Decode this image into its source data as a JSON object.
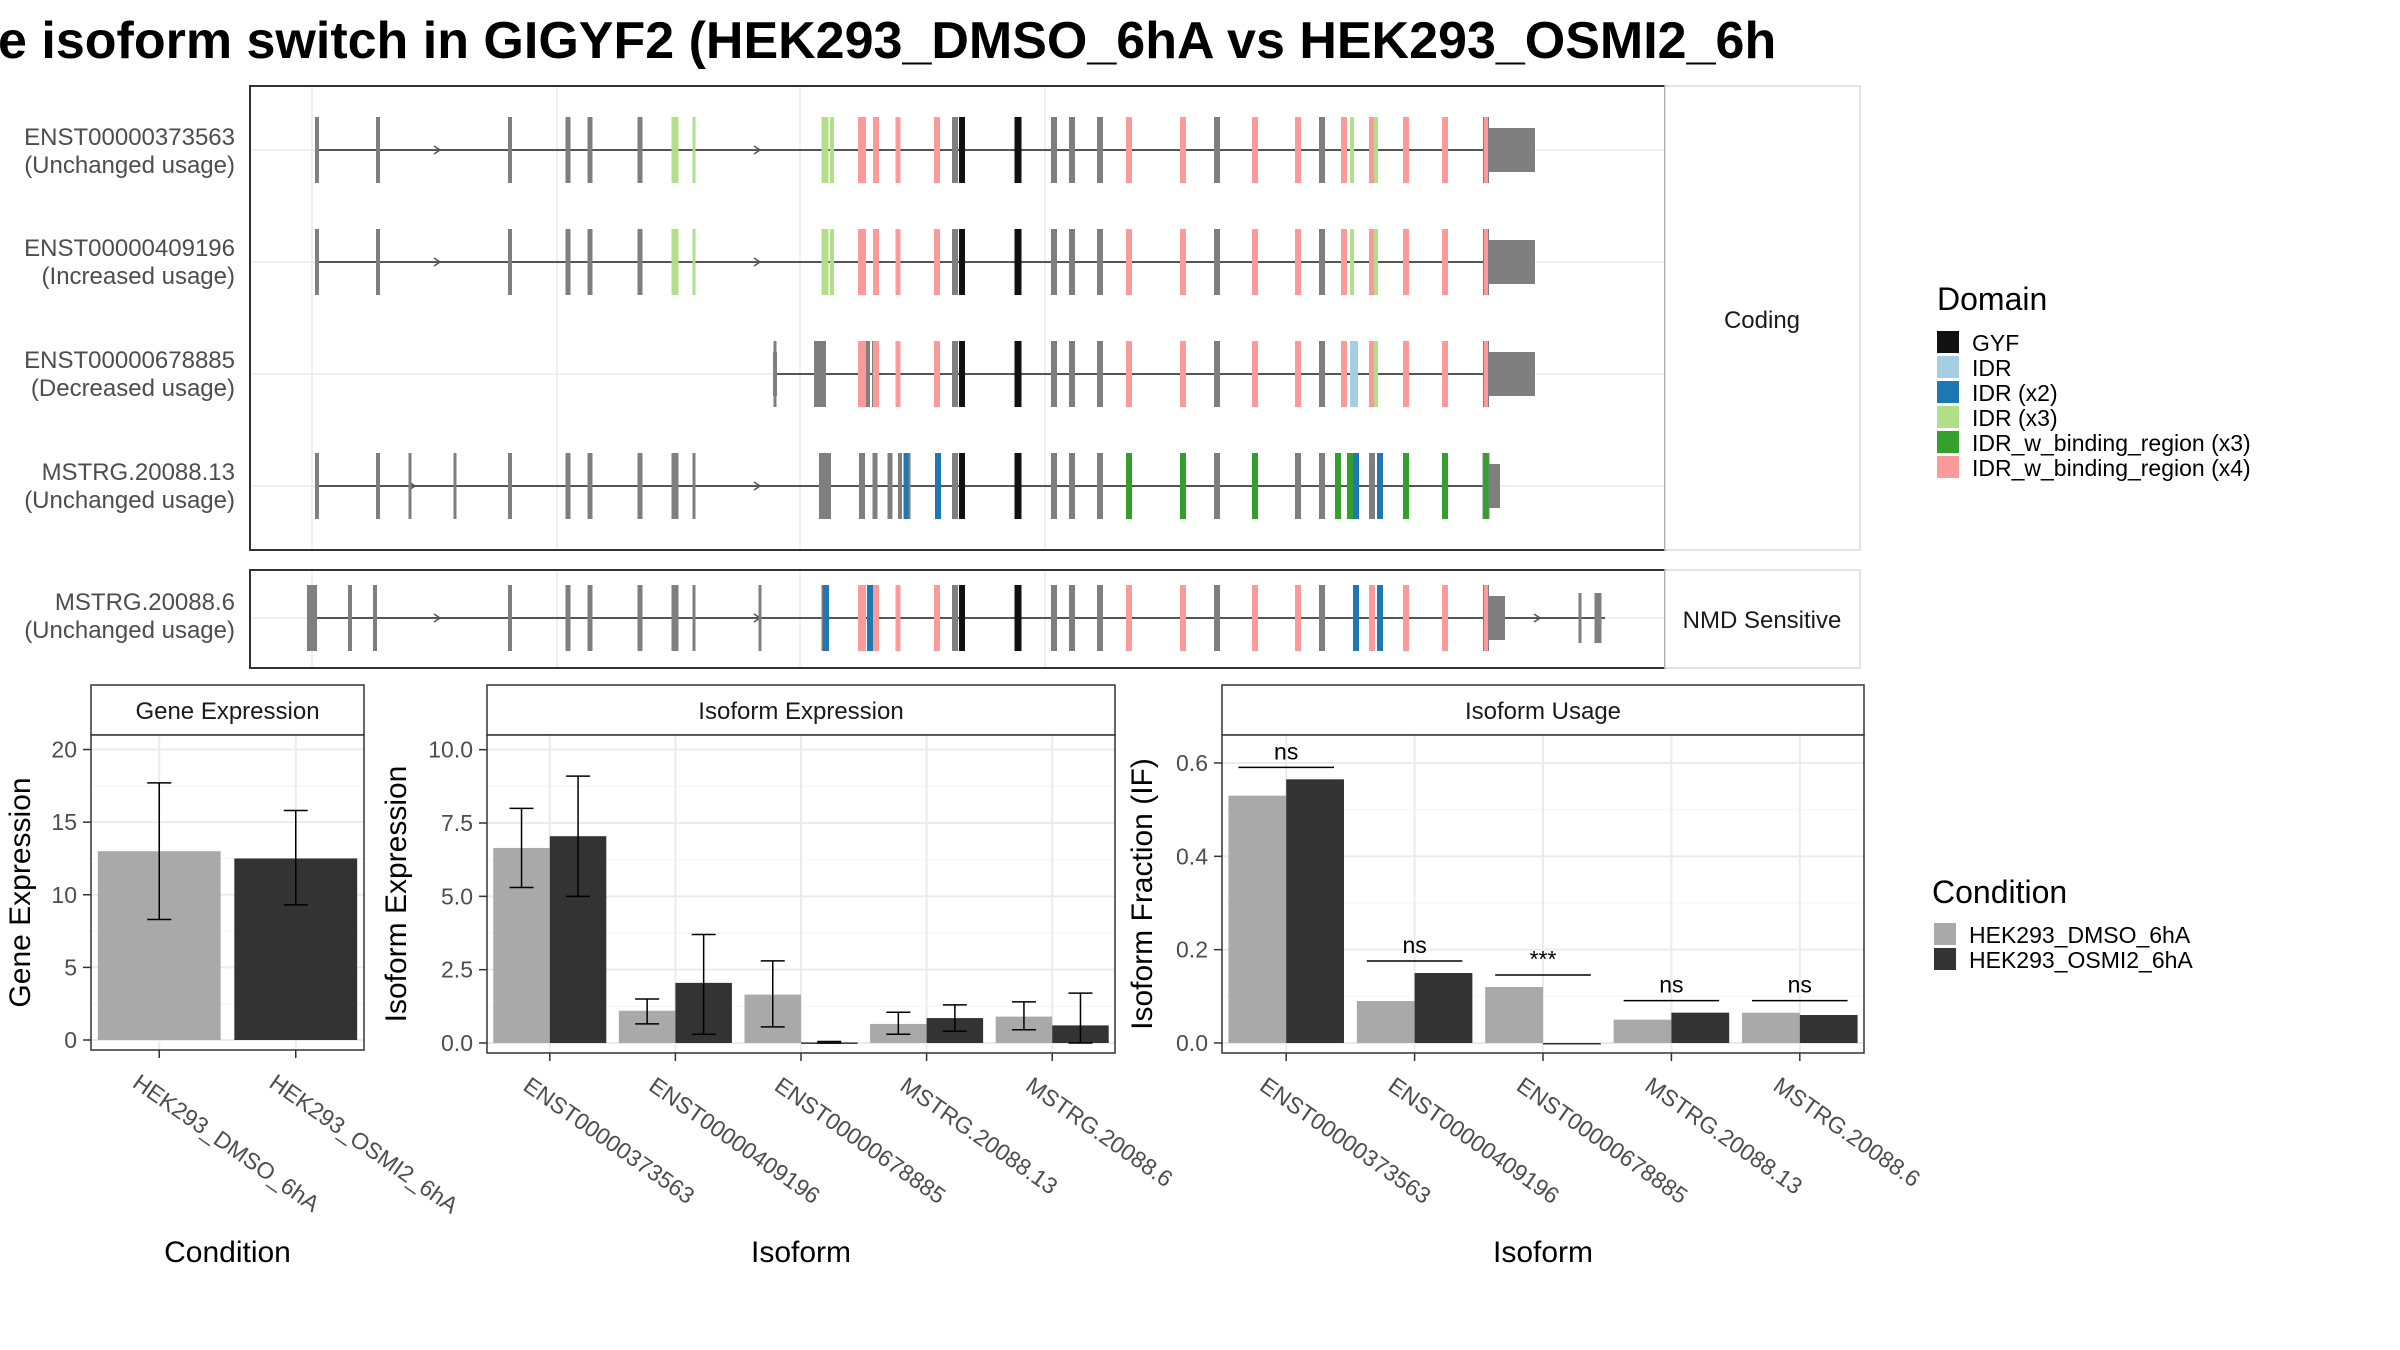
{
  "title": "e isoform switch in GIGYF2 (HEK293_DMSO_6hA vs HEK293_OSMI2_6h",
  "colors": {
    "exon": "#7f7f7f",
    "GYF": "#111111",
    "IDR": "#a6cee3",
    "IDR (x2)": "#1f78b4",
    "IDR (x3)": "#b2df8a",
    "IDR_w_binding_region (x3)": "#33a02c",
    "IDR_w_binding_region (x4)": "#fb9a99",
    "HEK293_DMSO_6hA": "#a9a9a9",
    "HEK293_OSMI2_6hA": "#333333"
  },
  "transcripts": {
    "coding_panel_label": "Coding",
    "nmd_panel_label": "NMD Sensitive",
    "rows": [
      {
        "id": "ENST00000373563",
        "usage": "(Unchanged usage)",
        "panel": "Coding"
      },
      {
        "id": "ENST00000409196",
        "usage": "(Increased usage)",
        "panel": "Coding"
      },
      {
        "id": "ENST00000678885",
        "usage": "(Decreased usage)",
        "panel": "Coding"
      },
      {
        "id": "MSTRG.20088.13",
        "usage": "(Unchanged usage)",
        "panel": "Coding"
      },
      {
        "id": "MSTRG.20088.6",
        "usage": "(Unchanged usage)",
        "panel": "NMD Sensitive"
      }
    ]
  },
  "domain_legend": {
    "title": "Domain",
    "items": [
      "GYF",
      "IDR",
      "IDR (x2)",
      "IDR (x3)",
      "IDR_w_binding_region (x3)",
      "IDR_w_binding_region (x4)"
    ]
  },
  "condition_legend": {
    "title": "Condition",
    "items": [
      "HEK293_DMSO_6hA",
      "HEK293_OSMI2_6hA"
    ]
  },
  "chart_data": [
    {
      "type": "bar",
      "title": "Gene Expression",
      "xlabel": "Condition",
      "ylabel": "Gene Expression",
      "ylim": [
        0,
        21
      ],
      "yticks": [
        0,
        5,
        10,
        15,
        20
      ],
      "categories": [
        "HEK293_DMSO_6hA",
        "HEK293_OSMI2_6hA"
      ],
      "values": [
        13.0,
        12.5
      ],
      "error_low": [
        8.3,
        9.3
      ],
      "error_high": [
        17.7,
        15.8
      ]
    },
    {
      "type": "bar",
      "title": "Isoform Expression",
      "xlabel": "Isoform",
      "ylabel": "Isoform Expression",
      "ylim": [
        0,
        10.5
      ],
      "yticks": [
        0.0,
        2.5,
        5.0,
        7.5,
        10.0
      ],
      "ytick_labels": [
        "0.0",
        "2.5",
        "5.0",
        "7.5",
        "10.0"
      ],
      "categories": [
        "ENST00000373563",
        "ENST00000409196",
        "ENST00000678885",
        "MSTRG.20088.13",
        "MSTRG.20088.6"
      ],
      "series": [
        {
          "name": "HEK293_DMSO_6hA",
          "values": [
            6.65,
            1.1,
            1.65,
            0.65,
            0.9
          ],
          "error_low": [
            5.3,
            0.65,
            0.55,
            0.3,
            0.45
          ],
          "error_high": [
            8.0,
            1.5,
            2.8,
            1.05,
            1.4
          ]
        },
        {
          "name": "HEK293_OSMI2_6hA",
          "values": [
            7.05,
            2.05,
            0.02,
            0.85,
            0.6
          ],
          "error_low": [
            5.0,
            0.3,
            0.0,
            0.4,
            0.0
          ],
          "error_high": [
            9.1,
            3.7,
            0.05,
            1.3,
            1.7
          ]
        }
      ]
    },
    {
      "type": "bar",
      "title": "Isoform Usage",
      "xlabel": "Isoform",
      "ylabel": "Isoform Fraction (IF)",
      "ylim": [
        0,
        0.66
      ],
      "yticks": [
        0.0,
        0.2,
        0.4,
        0.6
      ],
      "ytick_labels": [
        "0.0",
        "0.2",
        "0.4",
        "0.6"
      ],
      "categories": [
        "ENST00000373563",
        "ENST00000409196",
        "ENST00000678885",
        "MSTRG.20088.13",
        "MSTRG.20088.6"
      ],
      "series": [
        {
          "name": "HEK293_DMSO_6hA",
          "values": [
            0.53,
            0.09,
            0.12,
            0.05,
            0.065
          ]
        },
        {
          "name": "HEK293_OSMI2_6hA",
          "values": [
            0.565,
            0.15,
            0.0,
            0.065,
            0.06
          ]
        }
      ],
      "significance": [
        "ns",
        "ns",
        "***",
        "ns",
        "ns"
      ]
    }
  ]
}
